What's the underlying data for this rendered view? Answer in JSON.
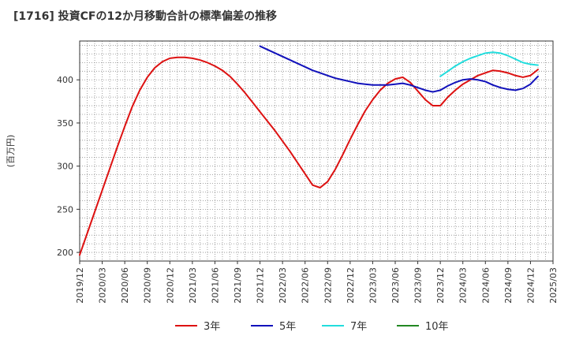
{
  "chart_data": {
    "type": "line",
    "title": "[1716]  投資CFの12か月移動合計の標準偏差の推移",
    "ylabel": "(百万円)",
    "xlabel": "",
    "ylim": [
      190,
      445
    ],
    "y_ticks": [
      200,
      250,
      300,
      350,
      400
    ],
    "x_ticks": [
      "2019/12",
      "2020/03",
      "2020/06",
      "2020/09",
      "2020/12",
      "2021/03",
      "2021/06",
      "2021/09",
      "2021/12",
      "2022/03",
      "2022/06",
      "2022/09",
      "2022/12",
      "2023/03",
      "2023/06",
      "2023/09",
      "2023/12",
      "2024/03",
      "2024/06",
      "2024/09",
      "2024/12",
      "2025/03"
    ],
    "x_range": [
      "2019/12",
      "2025/03"
    ],
    "grid": true,
    "legend_position": "bottom",
    "series": [
      {
        "name": "3年",
        "color": "#dd1111",
        "points": [
          [
            "2019/12",
            197
          ],
          [
            "2020/01",
            222
          ],
          [
            "2020/02",
            247
          ],
          [
            "2020/03",
            272
          ],
          [
            "2020/04",
            297
          ],
          [
            "2020/05",
            322
          ],
          [
            "2020/06",
            346
          ],
          [
            "2020/07",
            369
          ],
          [
            "2020/08",
            388
          ],
          [
            "2020/09",
            403
          ],
          [
            "2020/10",
            414
          ],
          [
            "2020/11",
            421
          ],
          [
            "2020/12",
            425
          ],
          [
            "2021/01",
            426
          ],
          [
            "2021/02",
            426
          ],
          [
            "2021/03",
            425
          ],
          [
            "2021/04",
            423
          ],
          [
            "2021/05",
            420
          ],
          [
            "2021/06",
            416
          ],
          [
            "2021/07",
            411
          ],
          [
            "2021/08",
            404
          ],
          [
            "2021/09",
            395
          ],
          [
            "2021/10",
            385
          ],
          [
            "2021/11",
            374
          ],
          [
            "2021/12",
            363
          ],
          [
            "2022/01",
            352
          ],
          [
            "2022/02",
            341
          ],
          [
            "2022/03",
            329
          ],
          [
            "2022/04",
            317
          ],
          [
            "2022/05",
            304
          ],
          [
            "2022/06",
            291
          ],
          [
            "2022/07",
            278
          ],
          [
            "2022/08",
            275
          ],
          [
            "2022/09",
            282
          ],
          [
            "2022/10",
            296
          ],
          [
            "2022/11",
            313
          ],
          [
            "2022/12",
            331
          ],
          [
            "2023/01",
            348
          ],
          [
            "2023/02",
            364
          ],
          [
            "2023/03",
            377
          ],
          [
            "2023/04",
            388
          ],
          [
            "2023/05",
            396
          ],
          [
            "2023/06",
            401
          ],
          [
            "2023/07",
            403
          ],
          [
            "2023/08",
            397
          ],
          [
            "2023/09",
            387
          ],
          [
            "2023/10",
            377
          ],
          [
            "2023/11",
            370
          ],
          [
            "2023/12",
            370
          ],
          [
            "2024/01",
            380
          ],
          [
            "2024/02",
            388
          ],
          [
            "2024/03",
            395
          ],
          [
            "2024/04",
            400
          ],
          [
            "2024/05",
            405
          ],
          [
            "2024/06",
            408
          ],
          [
            "2024/07",
            411
          ],
          [
            "2024/08",
            410
          ],
          [
            "2024/09",
            408
          ],
          [
            "2024/10",
            405
          ],
          [
            "2024/11",
            403
          ],
          [
            "2024/12",
            405
          ],
          [
            "2025/01",
            412
          ]
        ]
      },
      {
        "name": "5年",
        "color": "#1111bb",
        "points": [
          [
            "2021/12",
            439
          ],
          [
            "2022/01",
            435
          ],
          [
            "2022/02",
            431
          ],
          [
            "2022/03",
            427
          ],
          [
            "2022/04",
            423
          ],
          [
            "2022/05",
            419
          ],
          [
            "2022/06",
            415
          ],
          [
            "2022/07",
            411
          ],
          [
            "2022/08",
            408
          ],
          [
            "2022/09",
            405
          ],
          [
            "2022/10",
            402
          ],
          [
            "2022/11",
            400
          ],
          [
            "2022/12",
            398
          ],
          [
            "2023/01",
            396
          ],
          [
            "2023/02",
            395
          ],
          [
            "2023/03",
            394
          ],
          [
            "2023/04",
            394
          ],
          [
            "2023/05",
            394
          ],
          [
            "2023/06",
            395
          ],
          [
            "2023/07",
            396
          ],
          [
            "2023/08",
            394
          ],
          [
            "2023/09",
            391
          ],
          [
            "2023/10",
            388
          ],
          [
            "2023/11",
            386
          ],
          [
            "2023/12",
            388
          ],
          [
            "2024/01",
            393
          ],
          [
            "2024/02",
            397
          ],
          [
            "2024/03",
            400
          ],
          [
            "2024/04",
            401
          ],
          [
            "2024/05",
            400
          ],
          [
            "2024/06",
            398
          ],
          [
            "2024/07",
            394
          ],
          [
            "2024/08",
            391
          ],
          [
            "2024/09",
            389
          ],
          [
            "2024/10",
            388
          ],
          [
            "2024/11",
            390
          ],
          [
            "2024/12",
            395
          ],
          [
            "2025/01",
            404
          ]
        ]
      },
      {
        "name": "7年",
        "color": "#22dddd",
        "points": [
          [
            "2023/12",
            404
          ],
          [
            "2024/01",
            410
          ],
          [
            "2024/02",
            416
          ],
          [
            "2024/03",
            421
          ],
          [
            "2024/04",
            425
          ],
          [
            "2024/05",
            428
          ],
          [
            "2024/06",
            431
          ],
          [
            "2024/07",
            432
          ],
          [
            "2024/08",
            431
          ],
          [
            "2024/09",
            428
          ],
          [
            "2024/10",
            424
          ],
          [
            "2024/11",
            420
          ],
          [
            "2024/12",
            418
          ],
          [
            "2025/01",
            417
          ]
        ]
      },
      {
        "name": "10年",
        "color": "#228822",
        "points": []
      }
    ]
  }
}
